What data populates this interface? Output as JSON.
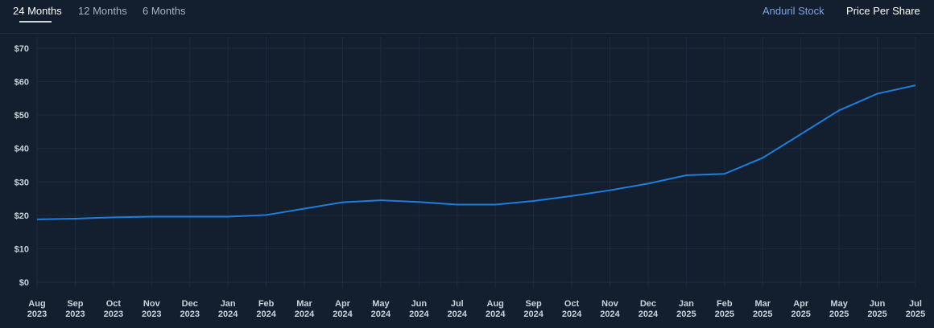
{
  "tabs": [
    {
      "label": "24 Months",
      "active": true
    },
    {
      "label": "12 Months",
      "active": false
    },
    {
      "label": "6 Months",
      "active": false
    }
  ],
  "legend": {
    "series_label": "Anduril Stock",
    "metric_label": "Price Per Share"
  },
  "colors": {
    "background": "#131f2e",
    "line": "#1f7ddc",
    "series_label": "#7aa6e0",
    "grid": "#1e2b3b"
  },
  "chart_data": {
    "type": "line",
    "title": "",
    "xlabel": "",
    "ylabel": "",
    "ylim": [
      0,
      70
    ],
    "y_ticks": [
      "$0",
      "$10",
      "$20",
      "$30",
      "$40",
      "$50",
      "$60",
      "$70"
    ],
    "categories": [
      [
        "Aug",
        "2023"
      ],
      [
        "Sep",
        "2023"
      ],
      [
        "Oct",
        "2023"
      ],
      [
        "Nov",
        "2023"
      ],
      [
        "Dec",
        "2023"
      ],
      [
        "Jan",
        "2024"
      ],
      [
        "Feb",
        "2024"
      ],
      [
        "Mar",
        "2024"
      ],
      [
        "Apr",
        "2024"
      ],
      [
        "May",
        "2024"
      ],
      [
        "Jun",
        "2024"
      ],
      [
        "Jul",
        "2024"
      ],
      [
        "Aug",
        "2024"
      ],
      [
        "Sep",
        "2024"
      ],
      [
        "Oct",
        "2024"
      ],
      [
        "Nov",
        "2024"
      ],
      [
        "Dec",
        "2024"
      ],
      [
        "Jan",
        "2025"
      ],
      [
        "Feb",
        "2025"
      ],
      [
        "Mar",
        "2025"
      ],
      [
        "Apr",
        "2025"
      ],
      [
        "May",
        "2025"
      ],
      [
        "Jun",
        "2025"
      ],
      [
        "Jul",
        "2025"
      ]
    ],
    "series": [
      {
        "name": "Anduril Stock",
        "values": [
          18.8,
          19.0,
          19.4,
          19.6,
          19.6,
          19.6,
          20.1,
          22.0,
          23.9,
          24.5,
          24.0,
          23.2,
          23.2,
          24.3,
          25.8,
          27.5,
          29.5,
          32.0,
          32.4,
          37.2,
          44.3,
          51.4,
          56.4,
          58.9
        ]
      }
    ],
    "grid": true,
    "legend": "top-right"
  }
}
